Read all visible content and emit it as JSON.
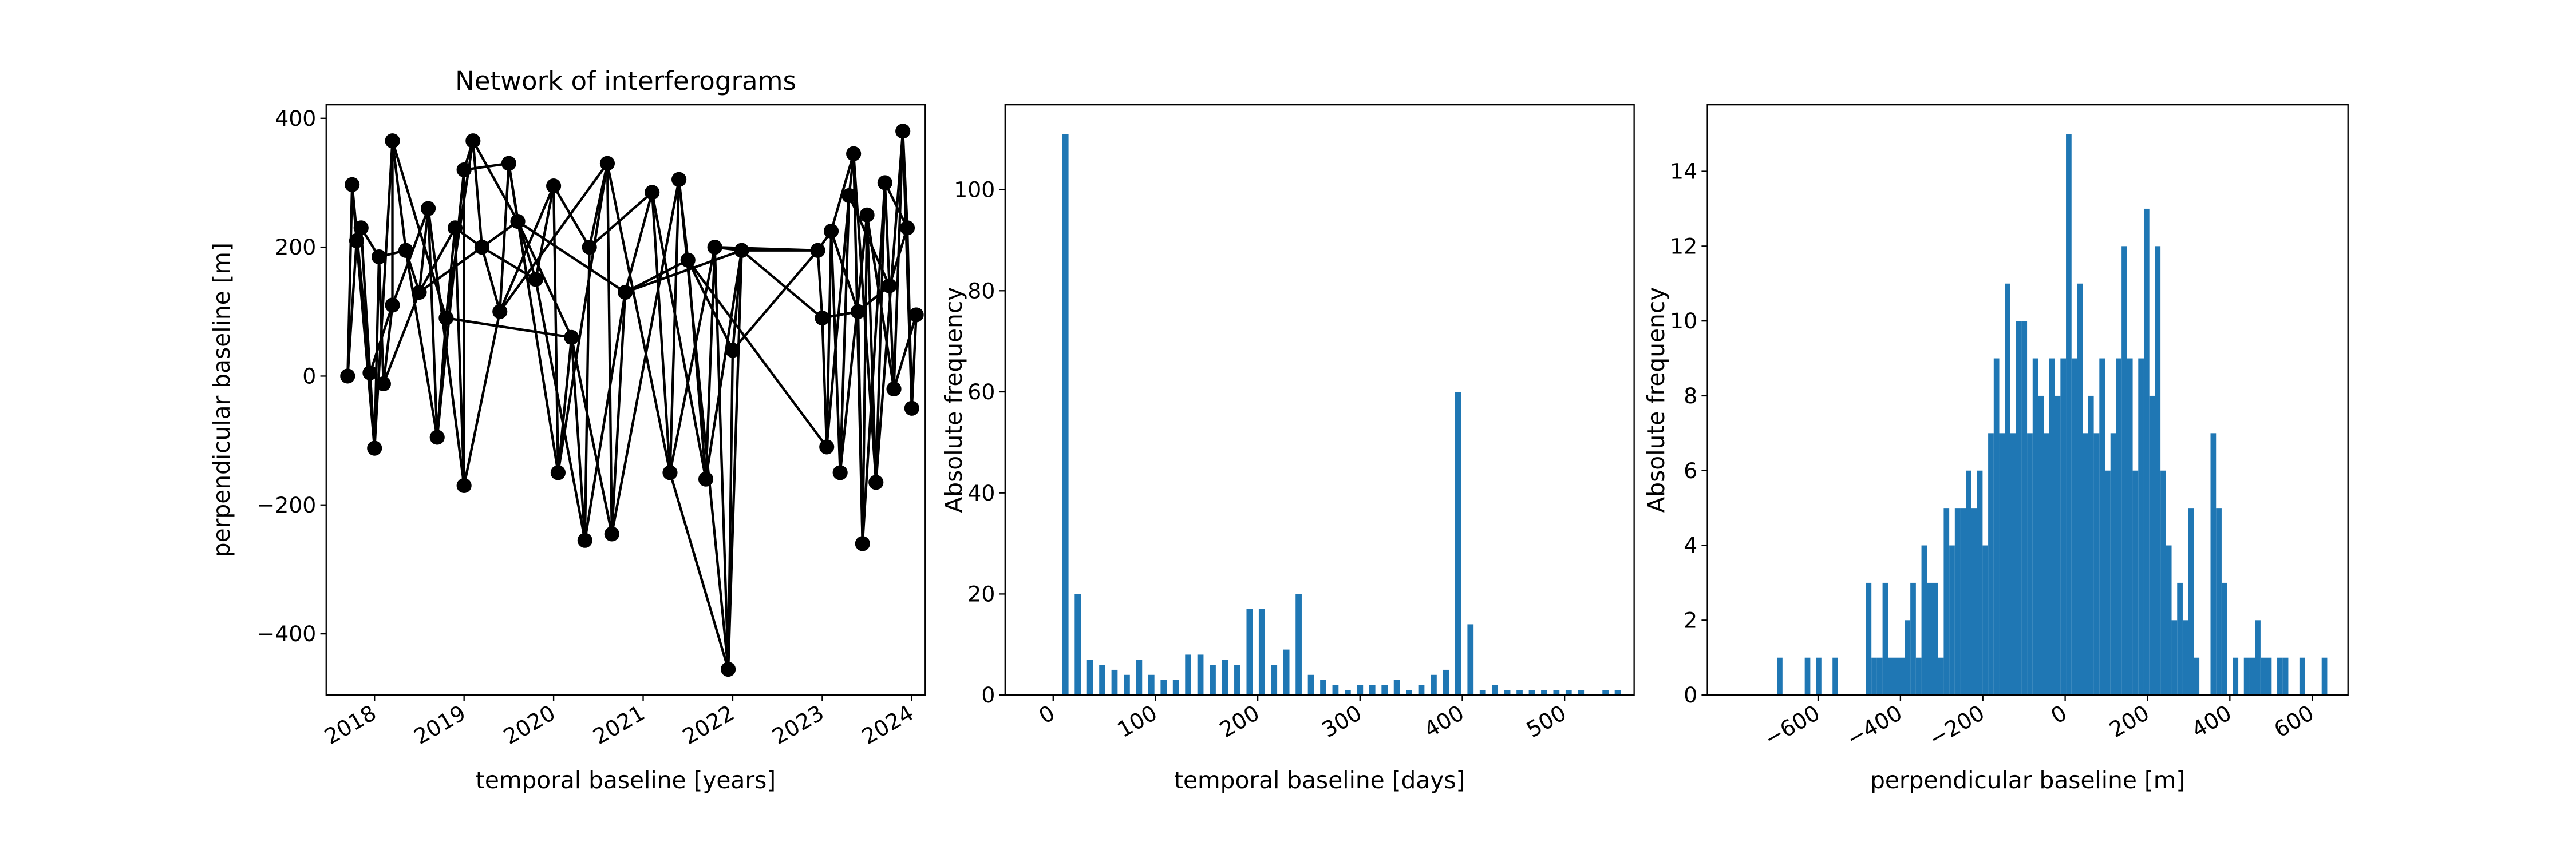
{
  "chart_data": [
    {
      "type": "network",
      "title": "Network of interferograms",
      "xlabel": "temporal baseline [years]",
      "ylabel": "perpendicular baseline [m]",
      "color": "#000000",
      "xlim": [
        2017.46,
        2024.15
      ],
      "xticks": [
        2018,
        2019,
        2020,
        2021,
        2022,
        2023,
        2024
      ],
      "ylim": [
        -495,
        421
      ],
      "yticks": [
        {
          "value": -400,
          "label": "−400"
        },
        {
          "value": -200,
          "label": "−200"
        },
        0,
        200,
        400
      ],
      "nodes": {
        "x": [
          2017.7,
          2017.75,
          2017.8,
          2017.85,
          2017.95,
          2018.0,
          2018.05,
          2018.1,
          2018.2,
          2018.2,
          2018.35,
          2018.5,
          2018.6,
          2018.7,
          2018.8,
          2018.9,
          2019.0,
          2019.0,
          2019.1,
          2019.2,
          2019.4,
          2019.5,
          2019.6,
          2019.8,
          2020.0,
          2020.05,
          2020.2,
          2020.35,
          2020.4,
          2020.6,
          2020.65,
          2020.8,
          2021.1,
          2021.3,
          2021.4,
          2021.5,
          2021.7,
          2021.8,
          2021.95,
          2022.0,
          2022.1,
          2022.95,
          2023.0,
          2023.05,
          2023.1,
          2023.2,
          2023.3,
          2023.35,
          2023.45,
          2023.5,
          2023.6,
          2023.7,
          2023.8,
          2023.9,
          2023.95,
          2024.0,
          2024.05,
          2023.4,
          2023.75
        ],
        "y": [
          0,
          297,
          210,
          230,
          5,
          -112,
          185,
          -12,
          110,
          365,
          195,
          130,
          260,
          -95,
          90,
          230,
          -170,
          320,
          365,
          200,
          100,
          330,
          240,
          150,
          295,
          -150,
          60,
          -255,
          200,
          330,
          -245,
          130,
          285,
          -150,
          305,
          180,
          -160,
          200,
          -455,
          40,
          195,
          195,
          90,
          -110,
          225,
          -150,
          280,
          345,
          -260,
          250,
          -165,
          300,
          -20,
          380,
          230,
          -50,
          95,
          100,
          140
        ]
      },
      "edges": [
        [
          0,
          1
        ],
        [
          1,
          2
        ],
        [
          2,
          3
        ],
        [
          3,
          4
        ],
        [
          4,
          5
        ],
        [
          5,
          6
        ],
        [
          6,
          7
        ],
        [
          7,
          8
        ],
        [
          8,
          9
        ],
        [
          9,
          10
        ],
        [
          10,
          11
        ],
        [
          11,
          12
        ],
        [
          12,
          13
        ],
        [
          13,
          14
        ],
        [
          14,
          15
        ],
        [
          15,
          16
        ],
        [
          16,
          17
        ],
        [
          17,
          18
        ],
        [
          18,
          19
        ],
        [
          19,
          20
        ],
        [
          20,
          21
        ],
        [
          21,
          22
        ],
        [
          22,
          23
        ],
        [
          23,
          24
        ],
        [
          24,
          25
        ],
        [
          25,
          26
        ],
        [
          26,
          27
        ],
        [
          27,
          28
        ],
        [
          28,
          29
        ],
        [
          29,
          30
        ],
        [
          30,
          31
        ],
        [
          31,
          32
        ],
        [
          32,
          33
        ],
        [
          33,
          34
        ],
        [
          34,
          35
        ],
        [
          35,
          36
        ],
        [
          36,
          37
        ],
        [
          37,
          38
        ],
        [
          38,
          39
        ],
        [
          39,
          40
        ],
        [
          40,
          41
        ],
        [
          41,
          42
        ],
        [
          42,
          43
        ],
        [
          43,
          44
        ],
        [
          44,
          45
        ],
        [
          45,
          46
        ],
        [
          46,
          47
        ],
        [
          47,
          48
        ],
        [
          48,
          49
        ],
        [
          49,
          50
        ],
        [
          50,
          51
        ],
        [
          51,
          52
        ],
        [
          52,
          53
        ],
        [
          53,
          54
        ],
        [
          54,
          55
        ],
        [
          55,
          56
        ],
        [
          0,
          2
        ],
        [
          1,
          4
        ],
        [
          2,
          5
        ],
        [
          3,
          6
        ],
        [
          4,
          8
        ],
        [
          5,
          9
        ],
        [
          6,
          10
        ],
        [
          7,
          11
        ],
        [
          8,
          12
        ],
        [
          9,
          14
        ],
        [
          10,
          13
        ],
        [
          11,
          15
        ],
        [
          12,
          16
        ],
        [
          13,
          17
        ],
        [
          14,
          18
        ],
        [
          15,
          19
        ],
        [
          16,
          20
        ],
        [
          17,
          21
        ],
        [
          18,
          22
        ],
        [
          19,
          23
        ],
        [
          20,
          24
        ],
        [
          21,
          25
        ],
        [
          22,
          26
        ],
        [
          23,
          27
        ],
        [
          24,
          28
        ],
        [
          25,
          29
        ],
        [
          26,
          30
        ],
        [
          27,
          31
        ],
        [
          28,
          32
        ],
        [
          29,
          33
        ],
        [
          30,
          34
        ],
        [
          31,
          35
        ],
        [
          32,
          36
        ],
        [
          33,
          37
        ],
        [
          34,
          38
        ],
        [
          35,
          39
        ],
        [
          36,
          40
        ],
        [
          37,
          40
        ],
        [
          33,
          38
        ],
        [
          38,
          40
        ],
        [
          39,
          41
        ],
        [
          40,
          42
        ],
        [
          37,
          41
        ],
        [
          35,
          43
        ],
        [
          41,
          44
        ],
        [
          42,
          57
        ],
        [
          43,
          46
        ],
        [
          44,
          47
        ],
        [
          45,
          49
        ],
        [
          46,
          58
        ],
        [
          47,
          50
        ],
        [
          57,
          48
        ],
        [
          48,
          51
        ],
        [
          49,
          52
        ],
        [
          50,
          53
        ],
        [
          51,
          54
        ],
        [
          52,
          56
        ],
        [
          53,
          55
        ],
        [
          58,
          54
        ],
        [
          57,
          58
        ],
        [
          44,
          57
        ],
        [
          22,
          31
        ],
        [
          14,
          26
        ],
        [
          20,
          29
        ],
        [
          11,
          22
        ],
        [
          31,
          40
        ]
      ]
    },
    {
      "type": "histogram",
      "xlabel": "temporal baseline [days]",
      "ylabel": "Absolute frequency",
      "color": "#1f77b4",
      "xlim": [
        -47,
        568
      ],
      "xticks": [
        0,
        100,
        200,
        300,
        400,
        500
      ],
      "ylim": [
        0,
        116.8
      ],
      "yticks": [
        0,
        20,
        40,
        60,
        80,
        100
      ],
      "bins": [
        9,
        15,
        21,
        27,
        33,
        39,
        45,
        51,
        57,
        63,
        69,
        75,
        81,
        87,
        93,
        99,
        105,
        111,
        117,
        123,
        129,
        135,
        141,
        147,
        153,
        159,
        165,
        171,
        177,
        183,
        189,
        195,
        201,
        207,
        213,
        219,
        225,
        231,
        237,
        243,
        249,
        255,
        261,
        267,
        273,
        279,
        285,
        291,
        297,
        303,
        309,
        315,
        321,
        327,
        333,
        339,
        345,
        351,
        357,
        363,
        369,
        375,
        381,
        387,
        393,
        399,
        405,
        411,
        417,
        423,
        429,
        435,
        441,
        447,
        453,
        459,
        465,
        471,
        477,
        483,
        489,
        495,
        501,
        507,
        513,
        519,
        525,
        531,
        537,
        543,
        549,
        555
      ],
      "counts": [
        111,
        0,
        20,
        0,
        7,
        0,
        6,
        0,
        5,
        0,
        4,
        0,
        7,
        0,
        4,
        0,
        3,
        0,
        3,
        0,
        8,
        0,
        8,
        0,
        6,
        0,
        7,
        0,
        6,
        0,
        17,
        0,
        17,
        0,
        6,
        0,
        9,
        0,
        20,
        0,
        4,
        0,
        3,
        0,
        2,
        0,
        1,
        0,
        2,
        0,
        2,
        0,
        2,
        0,
        3,
        0,
        1,
        0,
        2,
        0,
        4,
        0,
        5,
        0,
        60,
        0,
        14,
        0,
        1,
        0,
        2,
        0,
        1,
        0,
        1,
        0,
        1,
        0,
        1,
        0,
        1,
        0,
        1,
        0,
        1,
        0,
        0,
        0,
        1,
        0,
        1
      ]
    },
    {
      "type": "histogram",
      "xlabel": "perpendicular baseline [m]",
      "ylabel": "Absolute frequency",
      "color": "#1f77b4",
      "xlim": [
        -869,
        687
      ],
      "xticks": [
        {
          "value": -600,
          "label": "−600"
        },
        {
          "value": -400,
          "label": "−400"
        },
        {
          "value": -200,
          "label": "−200"
        },
        0,
        200,
        400,
        600
      ],
      "ylim": [
        0,
        15.78
      ],
      "yticks": [
        0,
        2,
        4,
        6,
        8,
        10,
        12,
        14
      ],
      "bins": [
        -700,
        -686.5,
        -673,
        -659.5,
        -646,
        -632.5,
        -619,
        -605.5,
        -592,
        -578.5,
        -565,
        -551.5,
        -538,
        -524.5,
        -511,
        -497.5,
        -484,
        -470.5,
        -457,
        -443.5,
        -430,
        -416.5,
        -403,
        -389.5,
        -376,
        -362.5,
        -349,
        -335.5,
        -322,
        -308.5,
        -295,
        -281.5,
        -268,
        -254.5,
        -241,
        -227.5,
        -214,
        -200.5,
        -187,
        -173.5,
        -160,
        -146.5,
        -133,
        -119.5,
        -106,
        -92.5,
        -79,
        -65.5,
        -52,
        -38.5,
        -25,
        -11.5,
        2,
        15.5,
        29,
        42.5,
        56,
        69.5,
        83,
        96.5,
        110,
        123.5,
        137,
        150.5,
        164,
        177.5,
        191,
        204.5,
        218,
        231.5,
        245,
        258.5,
        272,
        285.5,
        299,
        312.5,
        326,
        339.5,
        353,
        366.5,
        380,
        393.5,
        407,
        420.5,
        434,
        447.5,
        461,
        474.5,
        488,
        501.5,
        515,
        528.5,
        542,
        555.5,
        569,
        582.5,
        596,
        609.5,
        623,
        636.5,
        650
      ],
      "counts": [
        1,
        0,
        0,
        0,
        0,
        1,
        0,
        1,
        0,
        0,
        1,
        0,
        0,
        0,
        0,
        0,
        3,
        1,
        1,
        3,
        1,
        1,
        1,
        2,
        3,
        1,
        4,
        3,
        3,
        1,
        5,
        4,
        5,
        5,
        6,
        5,
        6,
        4,
        7,
        9,
        7,
        11,
        7,
        10,
        10,
        7,
        9,
        8,
        7,
        9,
        8,
        9,
        15,
        9,
        11,
        7,
        8,
        7,
        9,
        6,
        7,
        9,
        12,
        9,
        6,
        9,
        13,
        8,
        12,
        6,
        4,
        2,
        3,
        2,
        5,
        1,
        0,
        0,
        7,
        5,
        3,
        0,
        1,
        0,
        1,
        1,
        2,
        1,
        1,
        0,
        1,
        1,
        0,
        0,
        1,
        0,
        0,
        0,
        1,
        0
      ]
    }
  ]
}
